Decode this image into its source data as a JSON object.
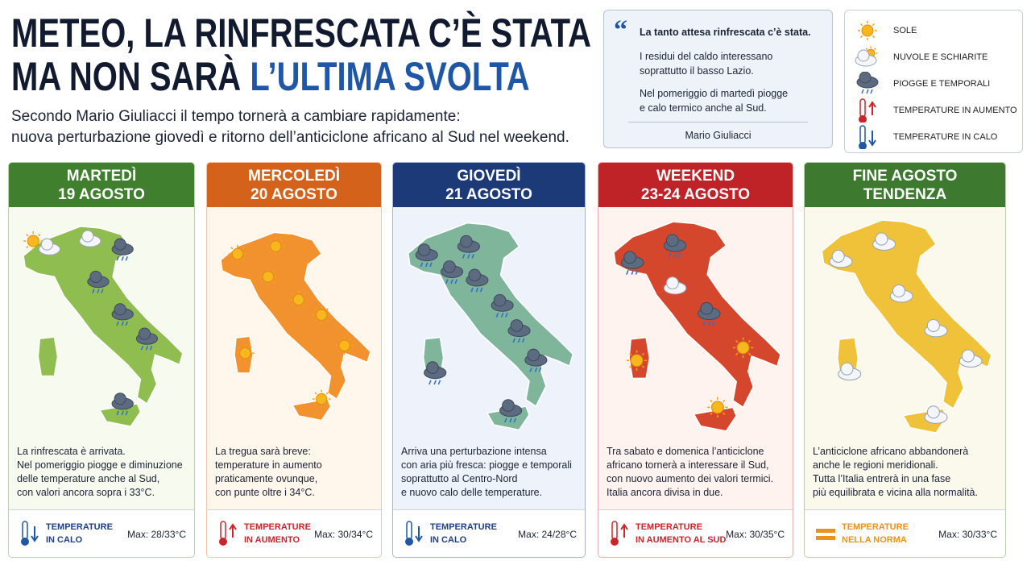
{
  "header": {
    "title_line1": "METEO, LA RINFRESCATA C’È STATA",
    "title_line2": "MA NON SARÀ",
    "title_highlight": "L’ULTIMA SVOLTA",
    "subtitle": [
      "Secondo Mario Giuliacci il tempo tornerà a cambiare rapidamente:",
      "nuova perturbazione giovedì e ritorno dell’anticiclone africano  al Sud  nel weekend."
    ]
  },
  "quote": {
    "heading": "La tanto attesa rinfrescata c’è stata.",
    "paragraphs": [
      [
        "I residui del caldo interessano",
        "soprattutto il basso Lazio."
      ],
      [
        "Nel pomeriggio di martedì piogge",
        "e calo termico anche al Sud."
      ]
    ],
    "author": "Mario Giuliacci"
  },
  "legend": [
    "SOLE",
    "NUVOLE E SCHIARITE",
    "PIOGGE E TEMPORALI",
    "TEMPERATURE IN AUMENTO",
    "TEMPERATURE IN CALO"
  ],
  "cards": [
    {
      "title": [
        "MARTEDÌ",
        "19 AGOSTO"
      ],
      "color": "#3f7f2e",
      "text": [
        "La rinfrescata è arrivata.",
        "Nel pomeriggio piogge e diminuzione",
        "delle temperature anche al Sud,",
        "con valori ancora sopra i 33°C."
      ],
      "footer": [
        "TEMPERATURE",
        "IN CALO"
      ],
      "max": "Max: 28/33°C"
    },
    {
      "title": [
        "MERCOLEDÌ",
        "20 AGOSTO"
      ],
      "color": "#d4621b",
      "text": [
        "La tregua sarà breve:",
        "temperature in aumento",
        "praticamente ovunque,",
        "con punte oltre i 34°C."
      ],
      "footer": [
        "TEMPERATURE",
        "IN AUMENTO"
      ],
      "max": "Max: 30/34°C"
    },
    {
      "title": [
        "GIOVEDÌ",
        "21 AGOSTO"
      ],
      "color": "#1d3a78",
      "text": [
        "Arriva una perturbazione intensa",
        "con aria più fresca: piogge e temporali",
        "soprattutto al Centro-Nord",
        "e nuovo calo delle temperature."
      ],
      "footer": [
        "TEMPERATURE",
        "IN CALO"
      ],
      "max": "Max: 24/28°C"
    },
    {
      "title": [
        "WEEKEND",
        "23-24 AGOSTO"
      ],
      "color": "#bf2328",
      "text": [
        "Tra sabato e domenica l’anticiclone",
        "africano tornerà a interessare il Sud,",
        "con nuovo aumento dei valori termici.",
        "Italia ancora divisa in due."
      ],
      "footer": [
        "TEMPERATURE",
        "IN AUMENTO AL SUD"
      ],
      "max": "Max: 30/35°C"
    },
    {
      "title": [
        "FINE AGOSTO",
        "TENDENZA"
      ],
      "color": "#3d7a30",
      "text": [
        "L’anticiclone africano abbandonerà",
        "anche le regioni meridionali.",
        "Tutta l’Italia entrerà in una fase",
        "più equilibrata e vicina alla normalità."
      ],
      "footer": [
        "TEMPERATURE",
        "NELLA NORMA"
      ],
      "max": "Max: 30/33°C"
    }
  ]
}
